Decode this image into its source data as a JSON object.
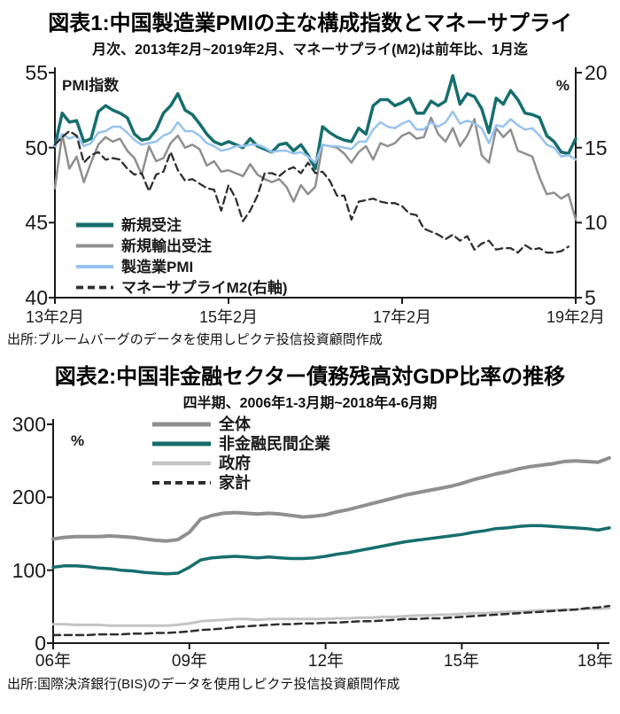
{
  "chart_data": [
    {
      "type": "line",
      "title": "図表1:中国製造業PMIの主な構成指数とマネーサプライ",
      "subtitle": "月次、2013年2月~2019年2月、マネーサプライ(M2)は前年比、1月迄",
      "source": "出所:ブルームバーグのデータを使用しピクテ投信投資顧問作成",
      "grid": false,
      "legend_position": "inside-bottom-left",
      "left_axis": {
        "label": "PMI指数",
        "min": 40,
        "max": 55,
        "ticks": [
          55,
          50,
          45,
          40
        ]
      },
      "right_axis": {
        "label": "%",
        "min": 5,
        "max": 20,
        "ticks": [
          20,
          15,
          10,
          5
        ]
      },
      "x_count": 73,
      "x_tick_labels": [
        "13年2月",
        "15年2月",
        "17年2月",
        "19年2月"
      ],
      "x_tick_indices": [
        0,
        24,
        48,
        72
      ],
      "series": [
        {
          "name": "新規受注",
          "axis": "left",
          "color": "#166e6d",
          "width": 3.5,
          "dash": "",
          "values": [
            50.1,
            52.3,
            51.7,
            51.8,
            50.4,
            50.6,
            52.4,
            52.8,
            52.5,
            52.3,
            52.0,
            50.9,
            50.5,
            50.6,
            51.2,
            52.3,
            52.8,
            53.6,
            52.5,
            52.2,
            51.6,
            50.9,
            50.4,
            50.2,
            50.4,
            50.2,
            50.0,
            50.6,
            50.1,
            49.9,
            49.7,
            50.2,
            50.3,
            49.8,
            50.2,
            49.5,
            48.6,
            51.4,
            51.0,
            50.7,
            50.5,
            50.4,
            51.3,
            50.9,
            52.8,
            53.2,
            53.2,
            52.8,
            53.0,
            53.3,
            52.3,
            52.3,
            53.1,
            52.8,
            53.1,
            54.8,
            52.9,
            53.6,
            53.4,
            52.6,
            51.0,
            53.3,
            52.9,
            53.8,
            53.2,
            52.3,
            52.2,
            52.0,
            50.8,
            50.4,
            49.7,
            49.6,
            50.6
          ]
        },
        {
          "name": "新規輸出受注",
          "axis": "left",
          "color": "#8f8f8f",
          "width": 2.5,
          "dash": "",
          "values": [
            47.3,
            50.9,
            48.6,
            49.4,
            47.7,
            49.0,
            50.2,
            50.7,
            50.4,
            50.6,
            49.8,
            49.3,
            48.2,
            50.1,
            49.1,
            49.3,
            50.3,
            50.8,
            50.0,
            50.2,
            49.9,
            48.8,
            49.1,
            48.4,
            48.5,
            48.3,
            48.1,
            48.9,
            48.2,
            47.9,
            47.7,
            47.9,
            47.4,
            46.4,
            47.5,
            46.9,
            47.4,
            50.2,
            50.1,
            50.0,
            49.6,
            49.0,
            49.7,
            50.1,
            49.2,
            50.3,
            50.1,
            50.3,
            50.8,
            51.0,
            50.6,
            50.7,
            52.0,
            50.9,
            50.4,
            51.3,
            50.1,
            50.8,
            51.9,
            49.5,
            49.0,
            51.3,
            50.7,
            51.2,
            49.8,
            49.6,
            49.4,
            48.0,
            46.9,
            47.0,
            46.6,
            46.9,
            45.2
          ]
        },
        {
          "name": "製造業PMI",
          "axis": "left",
          "color": "#97c3ee",
          "width": 2.5,
          "dash": "",
          "values": [
            50.1,
            50.9,
            50.6,
            50.8,
            50.1,
            50.3,
            51.0,
            51.1,
            51.4,
            51.4,
            51.0,
            50.5,
            50.2,
            50.3,
            50.4,
            50.8,
            51.0,
            51.7,
            51.1,
            51.1,
            50.8,
            50.3,
            50.1,
            49.8,
            49.9,
            50.1,
            50.1,
            50.2,
            50.2,
            50.0,
            49.7,
            49.8,
            49.8,
            49.6,
            49.7,
            49.4,
            49.0,
            50.2,
            50.1,
            50.1,
            50.0,
            49.9,
            50.4,
            50.4,
            51.2,
            51.7,
            51.4,
            51.3,
            51.6,
            51.8,
            51.2,
            51.2,
            51.7,
            51.4,
            51.7,
            52.4,
            51.6,
            51.8,
            51.6,
            51.3,
            50.3,
            51.5,
            51.4,
            51.9,
            51.5,
            51.2,
            51.3,
            50.8,
            50.2,
            50.0,
            49.4,
            49.5,
            49.2
          ]
        },
        {
          "name": "マネーサプライM2(右軸)",
          "axis": "right",
          "color": "#2f2f2f",
          "width": 2.3,
          "dash": "8,5",
          "values": [
            15.2,
            15.7,
            16.1,
            15.8,
            14.0,
            14.5,
            14.7,
            14.2,
            14.3,
            14.2,
            13.6,
            13.2,
            13.3,
            12.1,
            13.2,
            13.4,
            14.7,
            13.5,
            12.8,
            12.9,
            12.6,
            12.3,
            12.2,
            10.8,
            12.5,
            11.6,
            10.1,
            10.8,
            11.8,
            13.3,
            13.3,
            13.1,
            13.5,
            13.7,
            13.3,
            14.0,
            13.3,
            13.4,
            12.8,
            11.8,
            11.8,
            10.2,
            11.4,
            11.5,
            11.6,
            11.4,
            11.3,
            11.3,
            11.1,
            10.6,
            10.5,
            9.6,
            9.4,
            9.2,
            8.9,
            9.2,
            8.8,
            9.1,
            8.2,
            8.6,
            8.8,
            8.2,
            8.3,
            8.3,
            8.0,
            8.5,
            8.2,
            8.3,
            8.0,
            8.0,
            8.1,
            8.4
          ]
        }
      ]
    },
    {
      "type": "line",
      "title": "図表2:中国非金融セクター債務残高対GDP比率の推移",
      "subtitle": "四半期、2006年1-3月期~2018年4-6月期",
      "source": "出所:国際決済銀行(BIS)のデータを使用しピクテ投信投資顧問作成",
      "grid": false,
      "legend_position": "inside-top-left",
      "left_axis": {
        "label": "%",
        "min": 0,
        "max": 300,
        "ticks": [
          300,
          200,
          100,
          0
        ]
      },
      "x_count": 50,
      "x_tick_labels": [
        "06年",
        "09年",
        "12年",
        "15年",
        "18年"
      ],
      "x_tick_indices": [
        0,
        12,
        24,
        36,
        48
      ],
      "series": [
        {
          "name": "全体",
          "axis": "left",
          "color": "#8f8f8f",
          "width": 4,
          "dash": "",
          "values": [
            143,
            145,
            146,
            146,
            146,
            147,
            146,
            145,
            143,
            141,
            140,
            142,
            152,
            170,
            175,
            178,
            179,
            178,
            177,
            178,
            177,
            175,
            173,
            174,
            176,
            180,
            183,
            187,
            191,
            195,
            199,
            203,
            206,
            209,
            212,
            215,
            219,
            224,
            228,
            232,
            235,
            239,
            242,
            244,
            246,
            249,
            250,
            249,
            248,
            254
          ]
        },
        {
          "name": "非金融民間企業",
          "axis": "left",
          "color": "#166e6d",
          "width": 3.5,
          "dash": "",
          "values": [
            104,
            106,
            106,
            105,
            103,
            102,
            100,
            99,
            97,
            96,
            95,
            96,
            104,
            114,
            117,
            118,
            119,
            118,
            117,
            118,
            117,
            116,
            116,
            117,
            119,
            122,
            124,
            127,
            130,
            133,
            136,
            139,
            141,
            143,
            145,
            147,
            149,
            152,
            154,
            157,
            158,
            160,
            161,
            161,
            160,
            159,
            158,
            157,
            155,
            158
          ]
        },
        {
          "name": "政府",
          "axis": "left",
          "color": "#c4c4c4",
          "width": 3,
          "dash": "",
          "values": [
            26,
            26,
            25,
            25,
            25,
            24,
            24,
            24,
            24,
            24,
            24,
            25,
            27,
            30,
            31,
            32,
            33,
            33,
            32,
            33,
            33,
            33,
            33,
            33,
            33,
            34,
            34,
            35,
            35,
            36,
            36,
            37,
            38,
            38,
            39,
            39,
            40,
            41,
            41,
            42,
            43,
            43,
            44,
            45,
            45,
            46,
            46,
            47,
            47,
            48
          ]
        },
        {
          "name": "家計",
          "axis": "left",
          "color": "#2f2f2f",
          "width": 2.5,
          "dash": "8,5",
          "values": [
            11,
            11,
            11,
            11,
            12,
            12,
            12,
            13,
            13,
            14,
            14,
            15,
            16,
            18,
            19,
            20,
            22,
            23,
            24,
            25,
            26,
            26,
            27,
            27,
            28,
            28,
            29,
            30,
            30,
            31,
            32,
            33,
            33,
            34,
            34,
            35,
            36,
            37,
            38,
            39,
            40,
            41,
            42,
            43,
            44,
            45,
            46,
            48,
            49,
            51
          ]
        }
      ]
    }
  ]
}
